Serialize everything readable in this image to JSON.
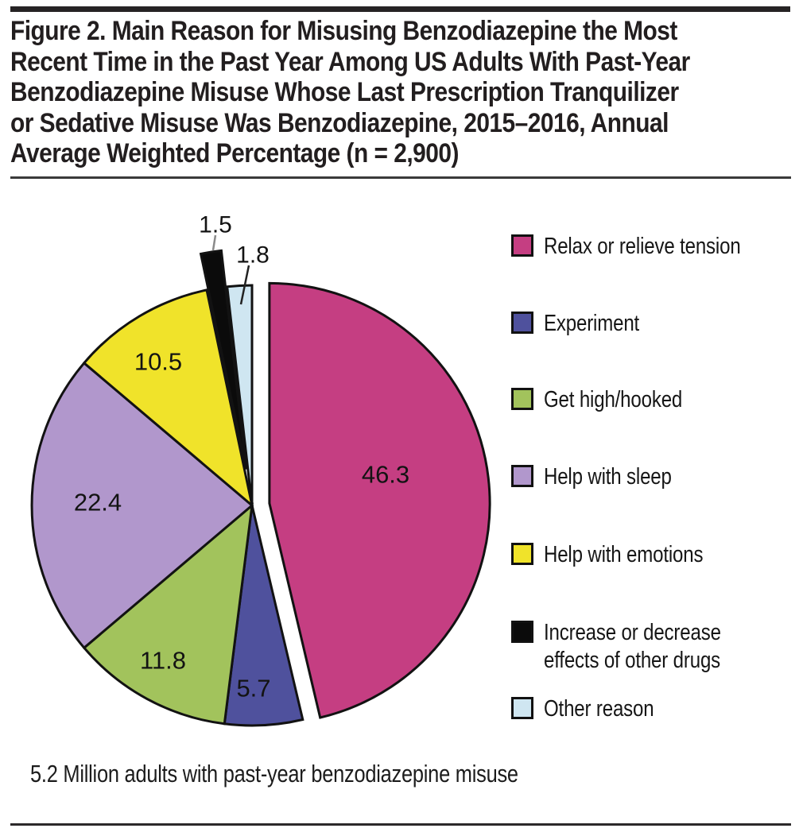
{
  "page": {
    "title_lines": [
      "Figure 2. Main Reason for Misusing Benzodiazepine the Most",
      "Recent Time in the Past Year Among US Adults With Past-Year",
      "Benzodiazepine Misuse Whose Last Prescription Tranquilizer",
      "or Sedative Misuse Was Benzodiazepine, 2015–2016, Annual",
      "Average Weighted Percentage (n = 2,900)"
    ],
    "note": "5.2 Million adults with past-year benzodiazepine misuse"
  },
  "chart_data": {
    "type": "pie",
    "title": "Figure 2. Main Reason for Misusing Benzodiazepine the Most Recent Time in the Past Year Among US Adults With Past-Year Benzodiazepine Misuse Whose Last Prescription Tranquilizer or Sedative Misuse Was Benzodiazepine, 2015–2016, Annual Average Weighted Percentage (n = 2,900)",
    "unit": "percent",
    "total": 100.0,
    "legend_position": "right",
    "start_angle_deg": 0,
    "direction": "clockwise",
    "slices": [
      {
        "label": "Relax or relieve tension",
        "value": 46.3,
        "display": "46.3",
        "color": "#C53E82",
        "exploded": true,
        "label_outside": false
      },
      {
        "label": "Experiment",
        "value": 5.7,
        "display": "5.7",
        "color": "#4F519D",
        "exploded": false,
        "label_outside": false
      },
      {
        "label": "Get high/hooked",
        "value": 11.8,
        "display": "11.8",
        "color": "#A2C35C",
        "exploded": false,
        "label_outside": false
      },
      {
        "label": "Help with sleep",
        "value": 22.4,
        "display": "22.4",
        "color": "#B197CC",
        "exploded": false,
        "label_outside": false
      },
      {
        "label": "Help with emotions",
        "value": 10.5,
        "display": "10.5",
        "color": "#F0E32A",
        "exploded": false,
        "label_outside": false
      },
      {
        "label": "Increase or decrease effects of other drugs",
        "value": 1.5,
        "display": "1.5",
        "color": "#0B0B0B",
        "exploded": true,
        "label_outside": true
      },
      {
        "label": "Other reason",
        "value": 1.8,
        "display": "1.8",
        "color": "#CFE6F1",
        "exploded": false,
        "label_outside": true
      }
    ],
    "note": "5.2 Million adults with past-year benzodiazepine misuse"
  }
}
